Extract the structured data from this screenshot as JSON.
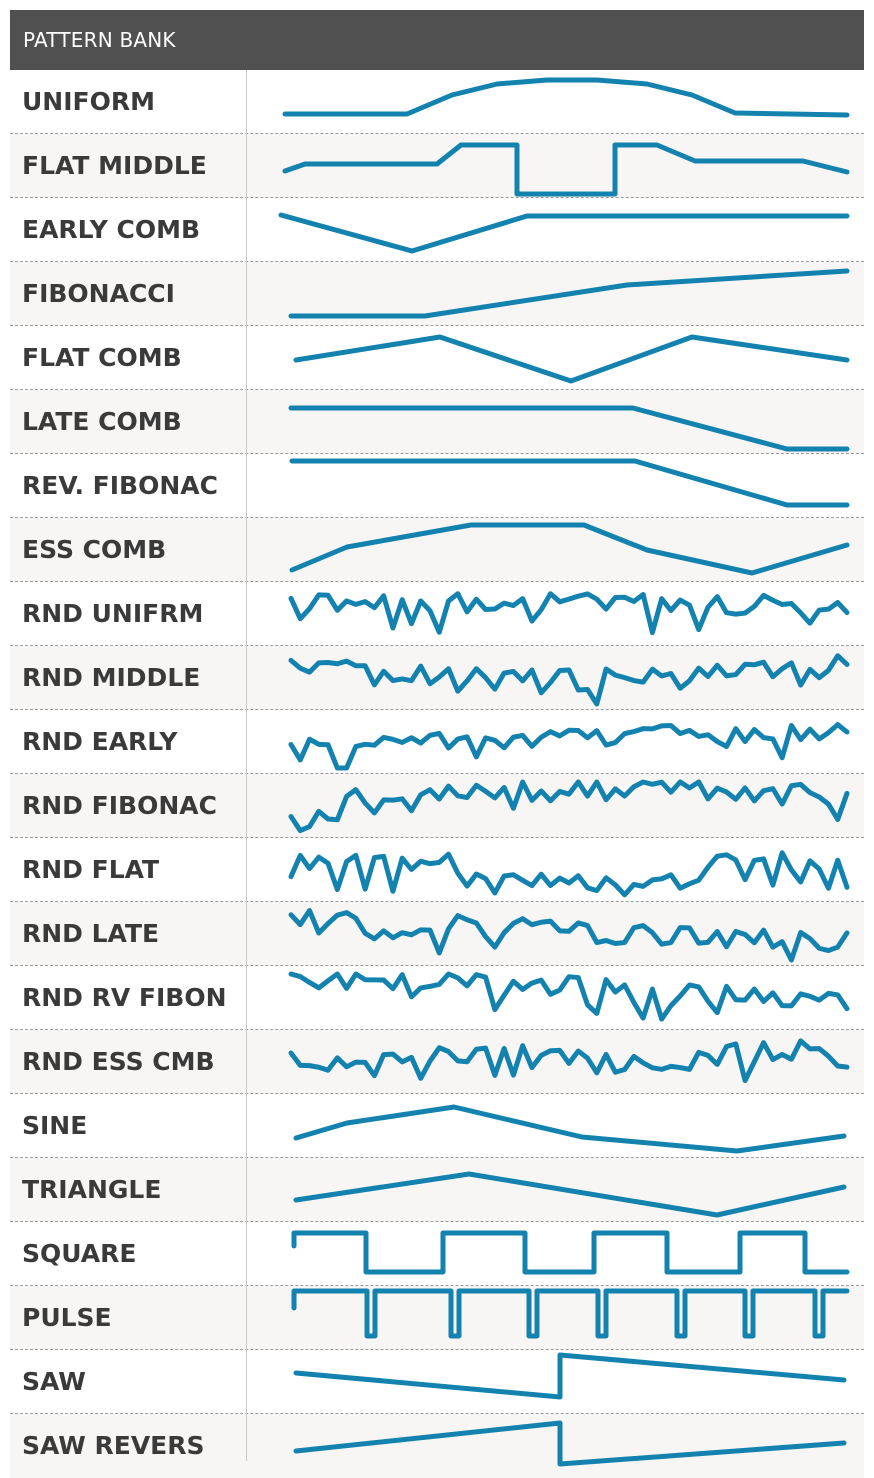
{
  "header": {
    "title": "PATTERN BANK"
  },
  "colors": {
    "header_bg": "#505050",
    "waveform": "#1482af",
    "row_alt": "#f7f6f4",
    "label": "#3a3a3a"
  },
  "patterns": [
    "UNIFORM",
    "FLAT MIDDLE",
    "EARLY COMB",
    "FIBONACCI",
    "FLAT COMB",
    "LATE COMB",
    "REV. FIBONAC",
    "ESS COMB",
    "RND UNIFRM",
    "RND MIDDLE",
    "RND EARLY",
    "RND FIBONAC",
    "RND FLAT",
    "RND LATE",
    "RND RV FIBON",
    "RND ESS CMB",
    "SINE",
    "TRIANGLE",
    "SQUARE",
    "PULSE",
    "SAW",
    "SAW REVERS"
  ]
}
